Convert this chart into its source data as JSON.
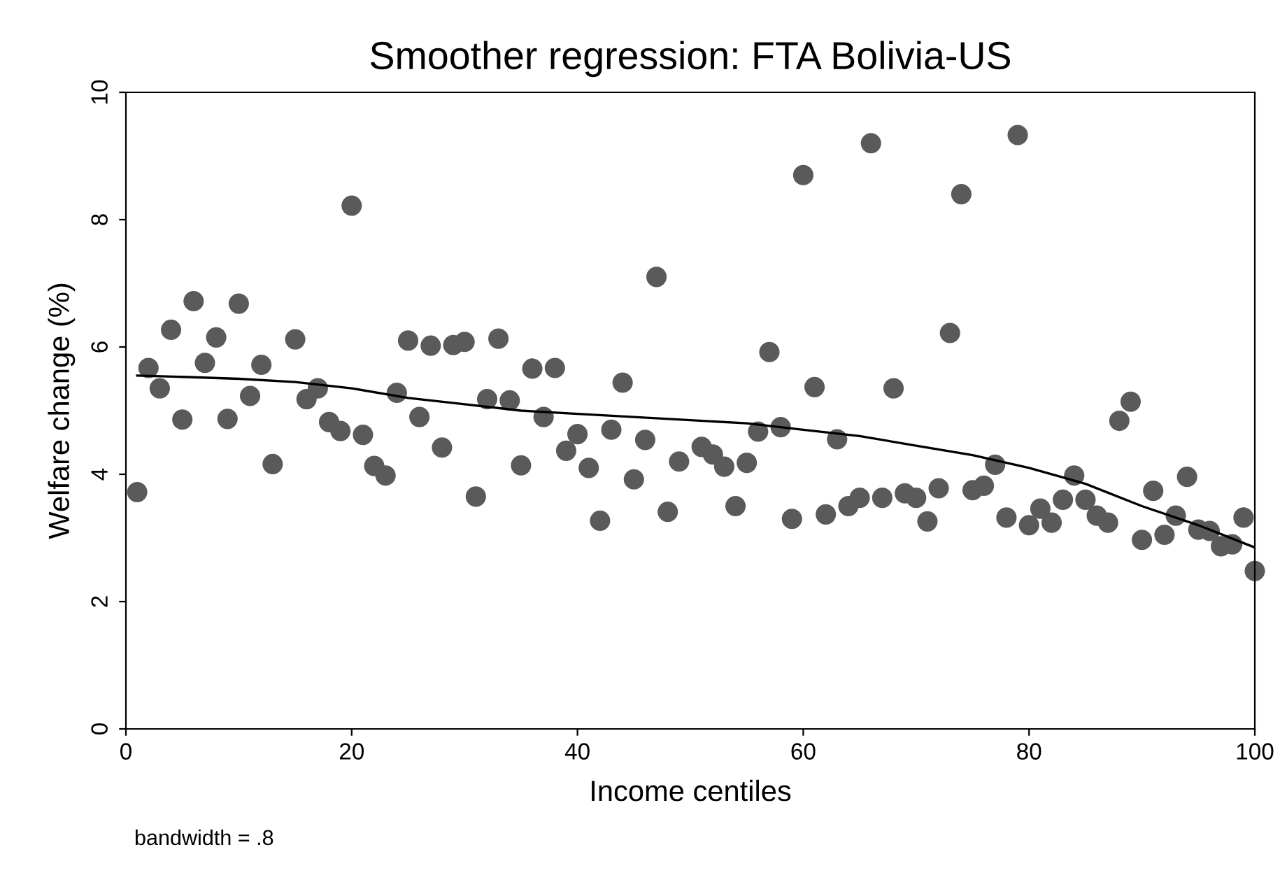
{
  "chart_data": {
    "type": "scatter",
    "title": "Smoother regression: FTA Bolivia-US",
    "xlabel": "Income centiles",
    "ylabel": "Welfare change (%)",
    "annotations": [
      "bandwidth = .8"
    ],
    "xlim": [
      0,
      100
    ],
    "ylim": [
      0,
      10
    ],
    "xticks": [
      0,
      20,
      40,
      60,
      80,
      100
    ],
    "yticks": [
      0,
      2,
      4,
      6,
      8,
      10
    ],
    "grid": false,
    "legend": false,
    "series": [
      {
        "marker": "circle",
        "color": "#5a5a5a",
        "x": [
          1,
          2,
          3,
          4,
          5,
          6,
          7,
          8,
          9,
          10,
          11,
          12,
          13,
          15,
          16,
          17,
          18,
          19,
          20,
          21,
          22,
          23,
          24,
          25,
          26,
          27,
          28,
          29,
          30,
          31,
          32,
          33,
          34,
          35,
          36,
          37,
          38,
          39,
          40,
          41,
          42,
          43,
          44,
          45,
          46,
          47,
          48,
          49,
          51,
          52,
          53,
          54,
          55,
          56,
          57,
          58,
          59,
          60,
          61,
          62,
          63,
          64,
          65,
          66,
          67,
          68,
          69,
          70,
          71,
          72,
          73,
          74,
          75,
          76,
          77,
          78,
          79,
          80,
          81,
          82,
          83,
          84,
          85,
          86,
          87,
          88,
          89,
          90,
          91,
          92,
          93,
          94,
          95,
          96,
          97,
          98,
          99,
          100
        ],
        "values": [
          3.72,
          5.67,
          5.35,
          6.27,
          4.86,
          6.72,
          5.75,
          6.15,
          4.87,
          6.68,
          5.23,
          5.72,
          4.16,
          6.12,
          5.18,
          5.35,
          4.82,
          4.68,
          8.22,
          4.62,
          4.13,
          3.98,
          5.28,
          6.1,
          4.9,
          6.02,
          4.42,
          6.03,
          6.08,
          3.65,
          5.18,
          6.13,
          5.16,
          4.14,
          5.66,
          4.9,
          5.67,
          4.37,
          4.63,
          4.1,
          3.27,
          4.7,
          5.44,
          3.92,
          4.54,
          7.1,
          3.41,
          4.2,
          4.43,
          4.31,
          4.12,
          3.5,
          4.18,
          4.67,
          5.92,
          4.74,
          3.3,
          8.7,
          5.37,
          3.37,
          4.55,
          3.5,
          3.63,
          9.2,
          3.63,
          5.35,
          3.7,
          3.63,
          3.26,
          3.78,
          6.22,
          8.4,
          3.75,
          3.82,
          4.15,
          3.32,
          9.33,
          3.2,
          3.46,
          3.24,
          3.6,
          3.98,
          3.6,
          3.35,
          3.24,
          4.84,
          5.14,
          2.97,
          3.74,
          3.05,
          3.35,
          3.96,
          3.13,
          3.11,
          2.87,
          2.9,
          3.32,
          2.48
        ]
      },
      {
        "type": "line",
        "marker": "none",
        "color": "#000000",
        "x": [
          1,
          5,
          10,
          15,
          20,
          25,
          30,
          35,
          40,
          45,
          50,
          55,
          60,
          65,
          70,
          75,
          80,
          85,
          90,
          95,
          100
        ],
        "values": [
          5.55,
          5.53,
          5.5,
          5.45,
          5.35,
          5.2,
          5.1,
          5.0,
          4.95,
          4.9,
          4.85,
          4.8,
          4.7,
          4.6,
          4.45,
          4.3,
          4.1,
          3.85,
          3.5,
          3.2,
          2.85
        ]
      }
    ]
  }
}
